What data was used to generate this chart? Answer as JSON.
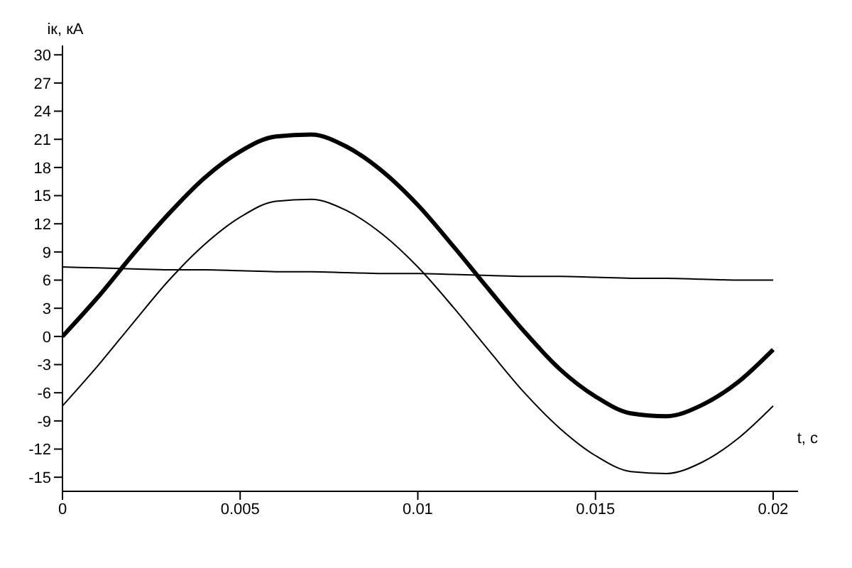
{
  "chart_data": {
    "type": "line",
    "xlabel": "t, с",
    "ylabel": "iк, кА",
    "x": [
      0,
      0.001,
      0.002,
      0.003,
      0.004,
      0.005,
      0.006,
      0.007,
      0.008,
      0.009,
      0.01,
      0.011,
      0.012,
      0.013,
      0.014,
      0.015,
      0.016,
      0.017,
      0.018,
      0.019,
      0.02
    ],
    "series": [
      {
        "color": "#000000",
        "values": [
          0,
          4.2,
          8.8,
          13.1,
          16.9,
          19.7,
          21.3,
          21.5,
          20.2,
          17.6,
          14.0,
          9.6,
          5.0,
          0.5,
          -3.5,
          -6.4,
          -8.2,
          -8.5,
          -7.3,
          -4.9,
          -1.4
        ]
      },
      {
        "color": "#000000",
        "values": [
          -7.4,
          -3.1,
          1.5,
          6.0,
          9.8,
          12.7,
          14.4,
          14.6,
          13.4,
          10.9,
          7.4,
          3.1,
          -1.5,
          -6.0,
          -9.8,
          -12.7,
          -14.4,
          -14.6,
          -13.4,
          -10.9,
          -7.4
        ]
      },
      {
        "color": "#000000",
        "values": [
          7.4,
          7.3,
          7.2,
          7.1,
          7.1,
          7.0,
          6.9,
          6.9,
          6.8,
          6.7,
          6.7,
          6.6,
          6.5,
          6.4,
          6.4,
          6.3,
          6.2,
          6.2,
          6.1,
          6.0,
          6.0
        ]
      }
    ],
    "xlim": [
      0,
      0.0207
    ],
    "xticks": [
      0,
      0.005,
      0.01,
      0.015,
      0.02
    ],
    "ylim": [
      -16.5,
      31
    ],
    "yticks": [
      -15,
      -12,
      -9,
      -6,
      -3,
      0,
      3,
      6,
      9,
      12,
      15,
      18,
      21,
      24,
      27,
      30
    ],
    "grid": false,
    "legend": false,
    "marker": "none",
    "line_style": "solid"
  }
}
